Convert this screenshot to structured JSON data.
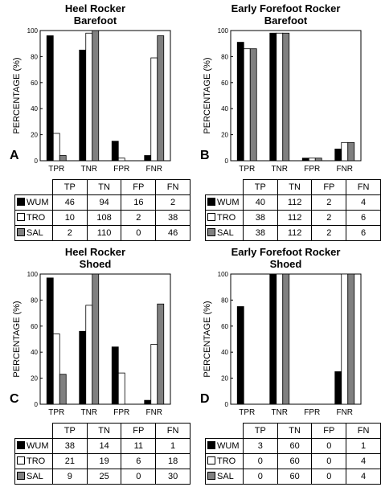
{
  "colors": {
    "WUM": "#000000",
    "TRO": "#ffffff",
    "SAL": "#808080"
  },
  "table_columns": [
    "TP",
    "TN",
    "FP",
    "FN"
  ],
  "panels": [
    {
      "title1": "Heel Rocker",
      "title2": "Barefoot",
      "letter": "A",
      "table": [
        {
          "label": "WUM",
          "values": [
            "46",
            "94",
            "16",
            "2"
          ]
        },
        {
          "label": "TRO",
          "values": [
            "10",
            "108",
            "2",
            "38"
          ]
        },
        {
          "label": "SAL",
          "values": [
            "2",
            "110",
            "0",
            "46"
          ]
        }
      ]
    },
    {
      "title1": "Early Forefoot Rocker",
      "title2": "Barefoot",
      "letter": "B",
      "table": [
        {
          "label": "WUM",
          "values": [
            "40",
            "112",
            "2",
            "4"
          ]
        },
        {
          "label": "TRO",
          "values": [
            "38",
            "112",
            "2",
            "6"
          ]
        },
        {
          "label": "SAL",
          "values": [
            "38",
            "112",
            "2",
            "6"
          ]
        }
      ]
    },
    {
      "title1": "Heel Rocker",
      "title2": "Shoed",
      "letter": "C",
      "table": [
        {
          "label": "WUM",
          "values": [
            "38",
            "14",
            "11",
            "1"
          ]
        },
        {
          "label": "TRO",
          "values": [
            "21",
            "19",
            "6",
            "18"
          ]
        },
        {
          "label": "SAL",
          "values": [
            "9",
            "25",
            "0",
            "30"
          ]
        }
      ]
    },
    {
      "title1": "Early Forefoot Rocker",
      "title2": "Shoed",
      "letter": "D",
      "table": [
        {
          "label": "WUM",
          "values": [
            "3",
            "60",
            "0",
            "1"
          ]
        },
        {
          "label": "TRO",
          "values": [
            "0",
            "60",
            "0",
            "4"
          ]
        },
        {
          "label": "SAL",
          "values": [
            "0",
            "60",
            "0",
            "4"
          ]
        }
      ]
    }
  ],
  "chart_data": [
    {
      "type": "bar",
      "title": "Heel Rocker Barefoot",
      "panel_label": "A",
      "categories": [
        "TPR",
        "TNR",
        "FPR",
        "FNR"
      ],
      "ylabel": "PERCENTAGE (%)",
      "ylim": [
        0,
        100
      ],
      "yticks": [
        0,
        20,
        40,
        60,
        80,
        100
      ],
      "series": [
        {
          "name": "WUM",
          "values": [
            96,
            85,
            15,
            4
          ]
        },
        {
          "name": "TRO",
          "values": [
            21,
            98,
            2,
            79
          ]
        },
        {
          "name": "SAL",
          "values": [
            4,
            100,
            0,
            96
          ]
        }
      ]
    },
    {
      "type": "bar",
      "title": "Early Forefoot Rocker Barefoot",
      "panel_label": "B",
      "categories": [
        "TPR",
        "TNR",
        "FPR",
        "FNR"
      ],
      "ylabel": "PERCENTAGE (%)",
      "ylim": [
        0,
        100
      ],
      "yticks": [
        0,
        20,
        40,
        60,
        80,
        100
      ],
      "series": [
        {
          "name": "WUM",
          "values": [
            91,
            98,
            2,
            9
          ]
        },
        {
          "name": "TRO",
          "values": [
            86,
            98,
            2,
            14
          ]
        },
        {
          "name": "SAL",
          "values": [
            86,
            98,
            2,
            14
          ]
        }
      ]
    },
    {
      "type": "bar",
      "title": "Heel Rocker Shoed",
      "panel_label": "C",
      "categories": [
        "TPR",
        "TNR",
        "FPR",
        "FNR"
      ],
      "ylabel": "PERCENTAGE (%)",
      "ylim": [
        0,
        100
      ],
      "yticks": [
        0,
        20,
        40,
        60,
        80,
        100
      ],
      "series": [
        {
          "name": "WUM",
          "values": [
            97,
            56,
            44,
            3
          ]
        },
        {
          "name": "TRO",
          "values": [
            54,
            76,
            24,
            46
          ]
        },
        {
          "name": "SAL",
          "values": [
            23,
            100,
            0,
            77
          ]
        }
      ]
    },
    {
      "type": "bar",
      "title": "Early Forefoot Rocker Shoed",
      "panel_label": "D",
      "categories": [
        "TPR",
        "TNR",
        "FPR",
        "FNR"
      ],
      "ylabel": "PERCENTAGE (%)",
      "ylim": [
        0,
        100
      ],
      "yticks": [
        0,
        20,
        40,
        60,
        80,
        100
      ],
      "series": [
        {
          "name": "WUM",
          "values": [
            75,
            100,
            0,
            25
          ]
        },
        {
          "name": "TRO",
          "values": [
            0,
            100,
            0,
            100
          ]
        },
        {
          "name": "SAL",
          "values": [
            0,
            100,
            0,
            100
          ]
        }
      ]
    }
  ]
}
